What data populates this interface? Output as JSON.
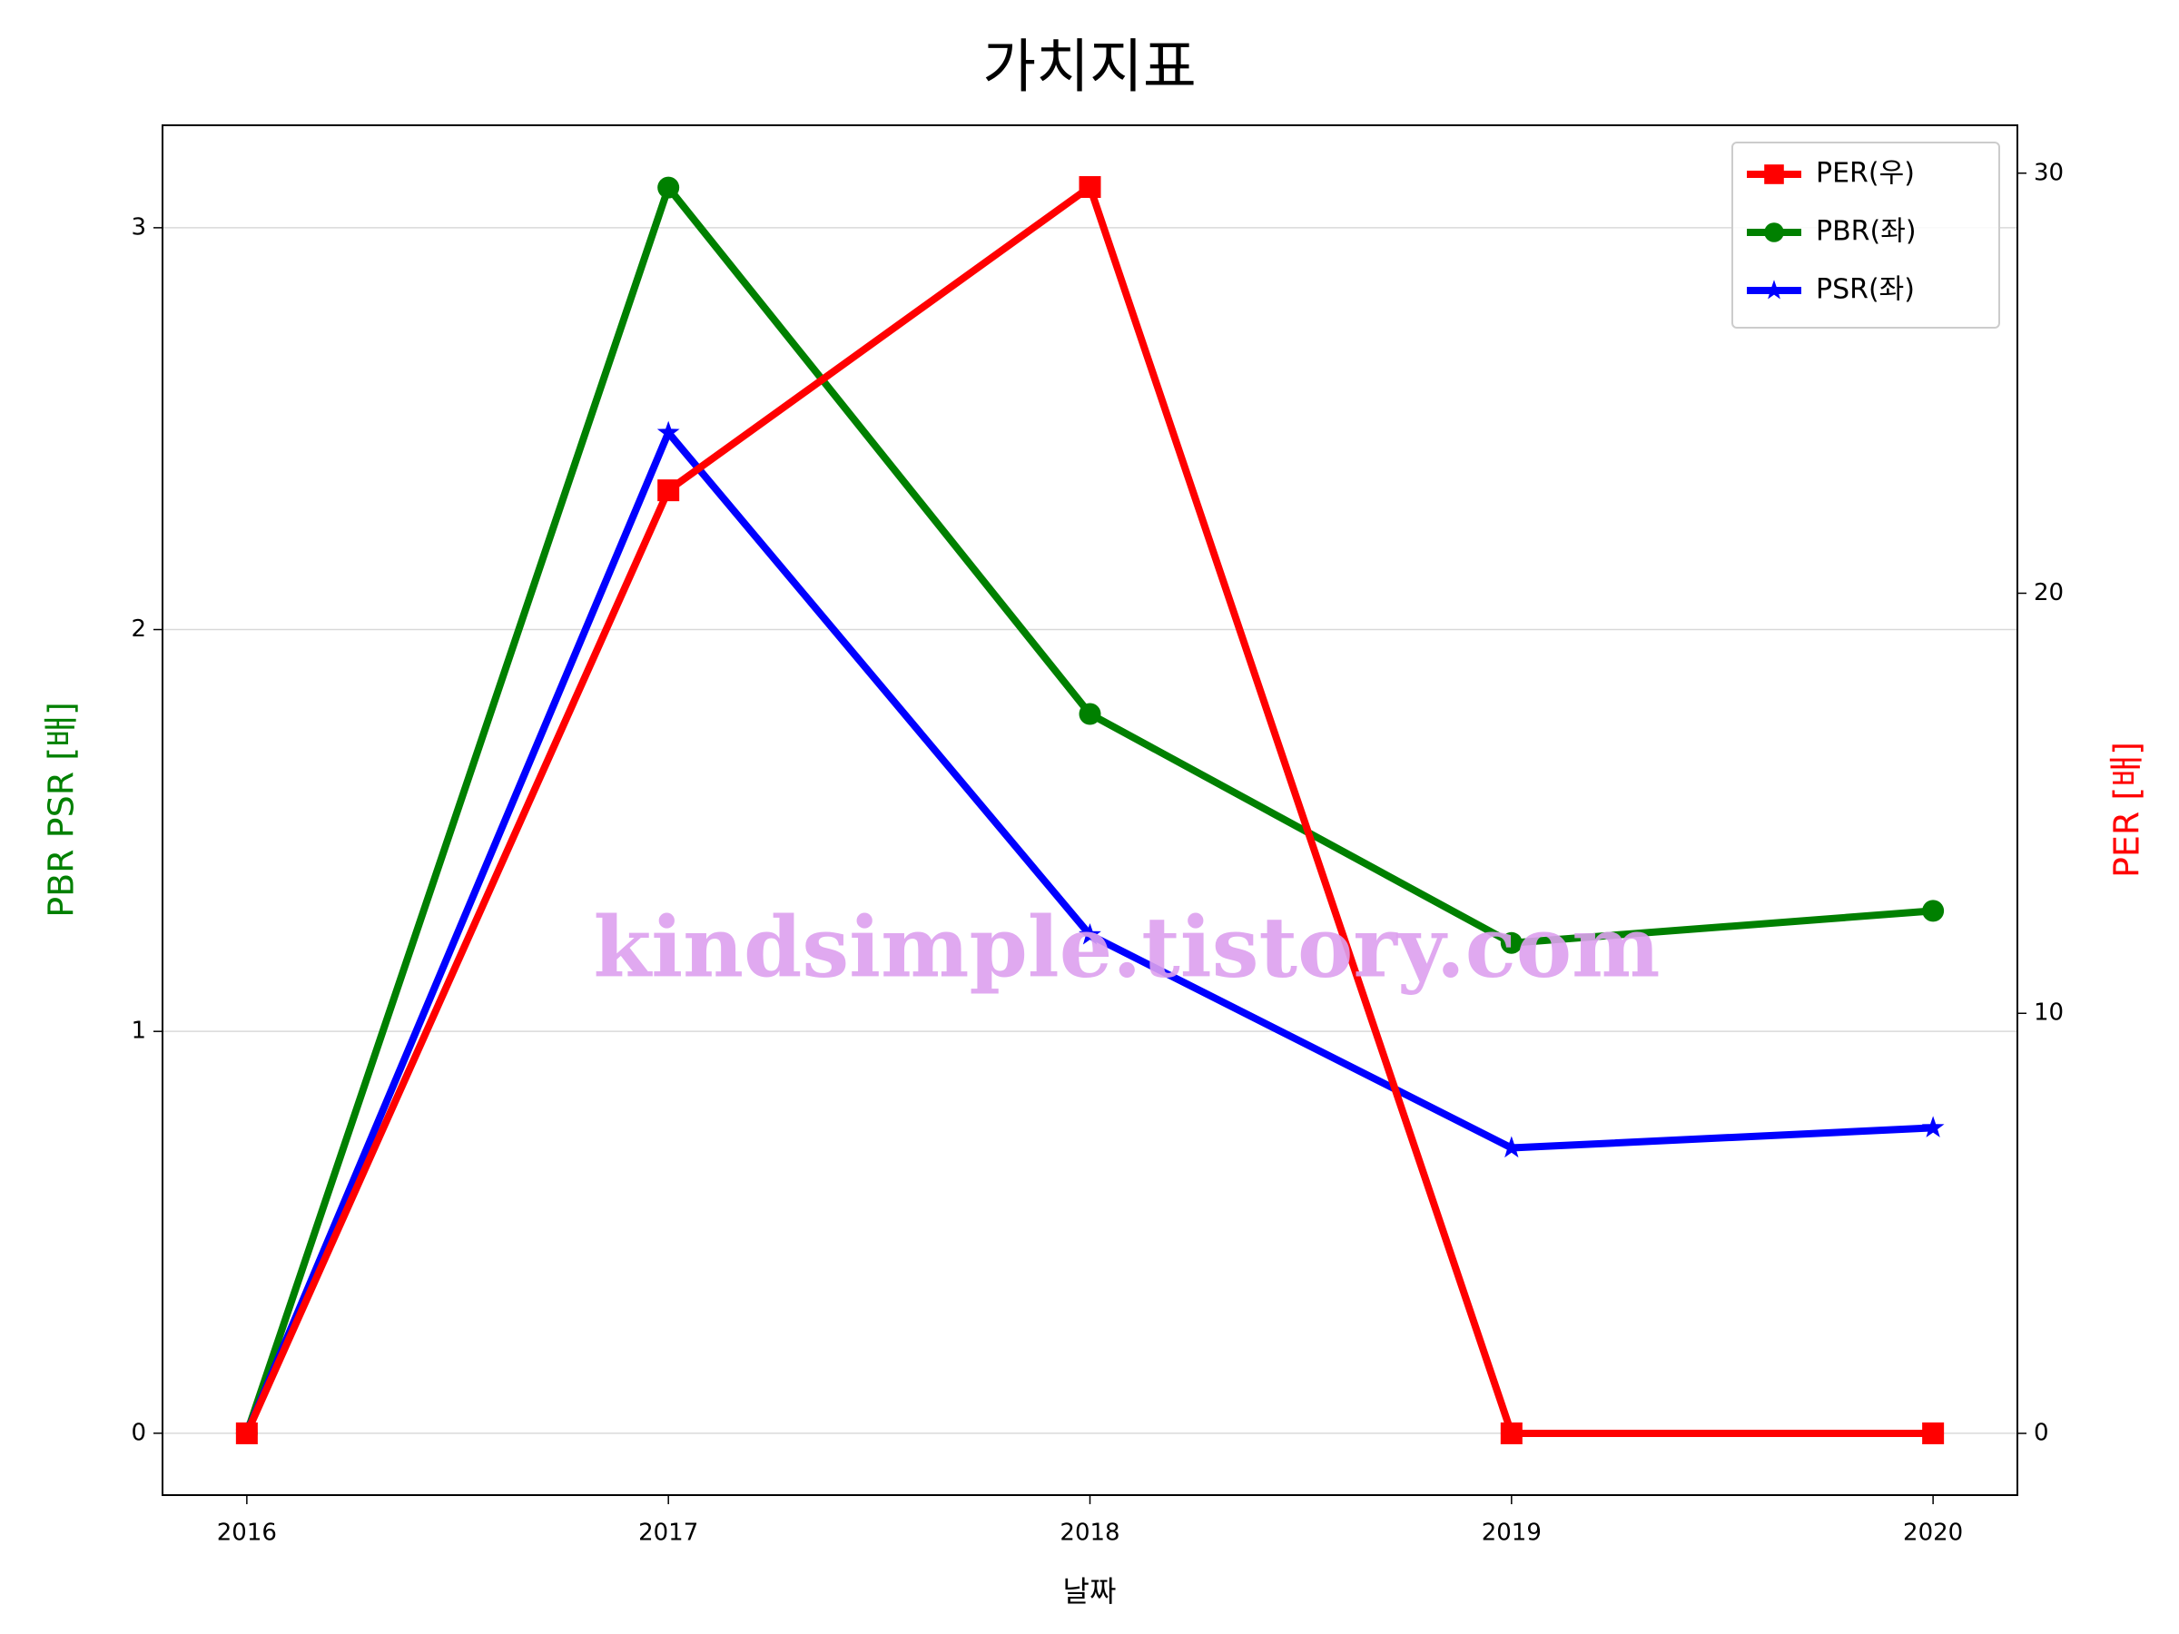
{
  "chart_data": {
    "type": "line",
    "title": "가치지표",
    "xlabel": "날짜",
    "ylabel": "PBR PSR [배]",
    "y2label": "PER [배]",
    "watermark": "kindsimple.tistory.com",
    "x": [
      2016,
      2017,
      2018,
      2019,
      2020
    ],
    "xlim": [
      2015.8,
      2020.2
    ],
    "xticks": [
      2016,
      2017,
      2018,
      2019,
      2020
    ],
    "ylim": [
      -0.154,
      3.255
    ],
    "yticks": [
      0,
      1,
      2,
      3
    ],
    "y2lim": [
      -1.47,
      31.14
    ],
    "y2ticks": [
      0,
      10,
      20,
      30
    ],
    "grid": true,
    "legend": "upper right",
    "series": [
      {
        "name": "PER(우)",
        "color": "#ff0000",
        "marker": "square",
        "axis": "y2",
        "values": [
          0,
          22.45,
          29.67,
          0,
          0
        ]
      },
      {
        "name": "PBR(좌)",
        "color": "#008000",
        "marker": "circle",
        "values": [
          0,
          3.1,
          1.79,
          1.22,
          1.3
        ]
      },
      {
        "name": "PSR(좌)",
        "color": "#0000ff",
        "marker": "star",
        "values": [
          0,
          2.49,
          1.24,
          0.71,
          0.76
        ]
      }
    ]
  }
}
